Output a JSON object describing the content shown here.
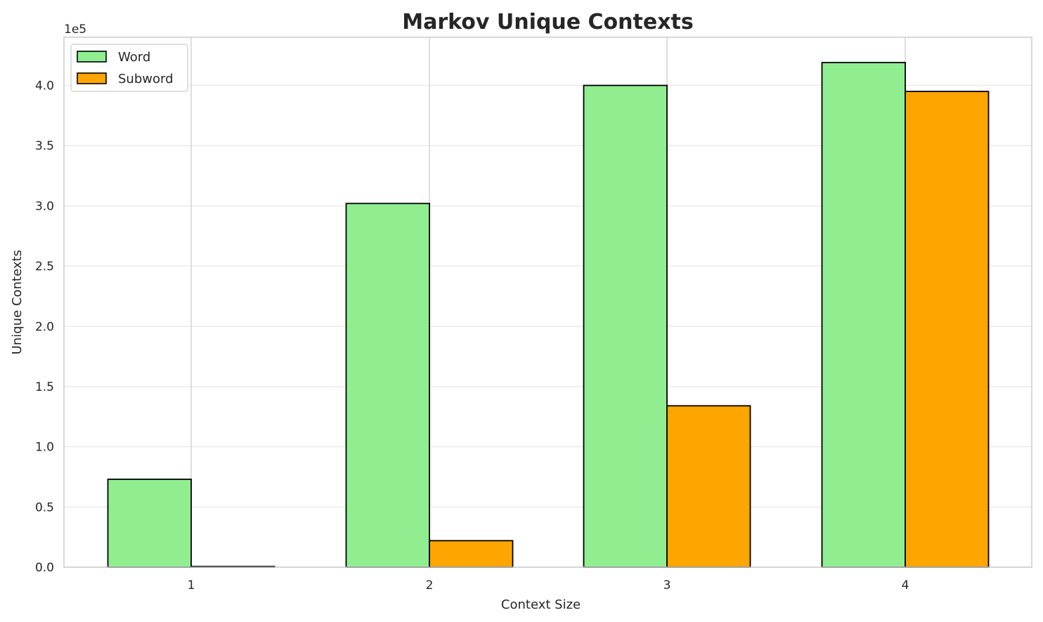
{
  "chart_data": {
    "type": "bar",
    "title": "Markov Unique Contexts",
    "xlabel": "Context Size",
    "ylabel": "Unique Contexts",
    "y_offset_label": "1e5",
    "y_scale": 100000,
    "categories": [
      "1",
      "2",
      "3",
      "4"
    ],
    "series": [
      {
        "name": "Word",
        "color": "#90ee90",
        "values": [
          73000,
          302000,
          400000,
          419000
        ]
      },
      {
        "name": "Subword",
        "color": "#ffa500",
        "values": [
          600,
          22000,
          134000,
          395000
        ]
      }
    ],
    "ylim": [
      0,
      440000
    ],
    "yticks": [
      0,
      50000,
      100000,
      150000,
      200000,
      250000,
      300000,
      350000,
      400000
    ],
    "ytick_labels": [
      "0.0",
      "0.5",
      "1.0",
      "1.5",
      "2.0",
      "2.5",
      "3.0",
      "3.5",
      "4.0"
    ],
    "grid": true,
    "legend_position": "top-left"
  }
}
